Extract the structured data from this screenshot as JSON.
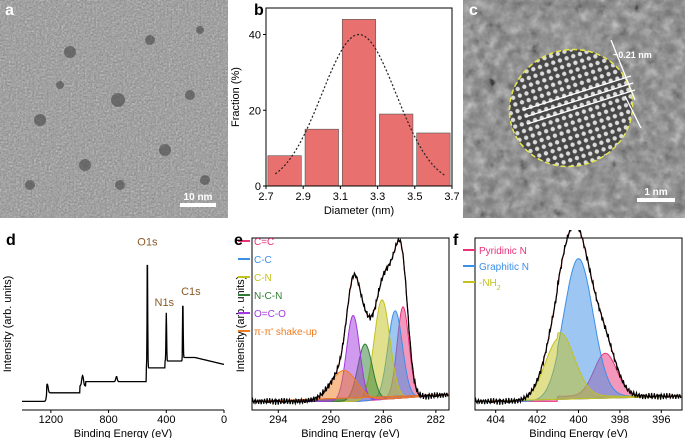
{
  "panel_labels": {
    "a": "a",
    "b": "b",
    "c": "c",
    "d": "d",
    "e": "e",
    "f": "f"
  },
  "panel_a": {
    "scalebar": "10 nm"
  },
  "panel_c": {
    "scalebar": "1 nm",
    "lattice_label": "~0.21 nm"
  },
  "chart_data": [
    {
      "id": "b",
      "type": "bar",
      "xlabel": "Diameter (nm)",
      "ylabel": "Fraction (%)",
      "xlim": [
        2.7,
        3.7
      ],
      "ylim": [
        0,
        47
      ],
      "xticks": [
        "2.7",
        "2.9",
        "3.1",
        "3.3",
        "3.5",
        "3.7"
      ],
      "yticks": [
        "0",
        "20",
        "40"
      ],
      "bar_width": 0.18,
      "bars": [
        {
          "x": 2.8,
          "y": 8
        },
        {
          "x": 3.0,
          "y": 15
        },
        {
          "x": 3.2,
          "y": 44
        },
        {
          "x": 3.4,
          "y": 19
        },
        {
          "x": 3.6,
          "y": 14
        }
      ],
      "fit": {
        "type": "gaussian",
        "mean": 3.2,
        "sigma": 0.2,
        "peak": 40
      },
      "bar_color": "#e8706e",
      "fit_color": "#222222"
    },
    {
      "id": "d",
      "type": "line",
      "xlabel": "Binding Energy (eV)",
      "ylabel": "Intensity (arb. units)",
      "xlim": [
        1400,
        0
      ],
      "xticks": [
        "1200",
        "800",
        "400",
        "0"
      ],
      "annotations": [
        {
          "text": "O1s",
          "x": 531
        },
        {
          "text": "N1s",
          "x": 400
        },
        {
          "text": "C1s",
          "x": 285
        }
      ],
      "annotation_color": "#8b5a2b"
    },
    {
      "id": "e",
      "type": "line",
      "xlabel": "Binding Energy (eV)",
      "ylabel": "Intensity (arb. units)",
      "xlim": [
        296,
        281
      ],
      "xticks": [
        "294",
        "290",
        "286",
        "282"
      ],
      "legend": [
        {
          "name": "C=C",
          "color": "#e8327a"
        },
        {
          "name": "C-C",
          "color": "#3c8fe6"
        },
        {
          "name": "C-N",
          "color": "#c3c21c"
        },
        {
          "name": "N-C-N",
          "color": "#2e7d32"
        },
        {
          "name": "O=C-O",
          "color": "#a238e0"
        },
        {
          "name": "π-π' shake-up",
          "color": "#f07c1f"
        }
      ],
      "components": [
        {
          "center": 284.5,
          "height": 0.53,
          "sigma": 0.45,
          "color": "#e8327a"
        },
        {
          "center": 285.1,
          "height": 0.51,
          "sigma": 0.55,
          "color": "#3c8fe6"
        },
        {
          "center": 286.1,
          "height": 0.58,
          "sigma": 0.6,
          "color": "#c3c21c"
        },
        {
          "center": 287.4,
          "height": 0.33,
          "sigma": 0.55,
          "color": "#2e7d32"
        },
        {
          "center": 288.3,
          "height": 0.5,
          "sigma": 0.5,
          "color": "#a238e0"
        },
        {
          "center": 289.0,
          "height": 0.18,
          "sigma": 1.0,
          "color": "#f07c1f"
        }
      ]
    },
    {
      "id": "f",
      "type": "line",
      "xlabel": "Binding Energy (eV)",
      "xlim": [
        405,
        395
      ],
      "xticks": [
        "404",
        "402",
        "400",
        "398",
        "396"
      ],
      "legend": [
        {
          "name": "Pyridinic N",
          "color": "#e8327a"
        },
        {
          "name": "Graphitic N",
          "color": "#3c8fe6"
        },
        {
          "name": "-NH",
          "sub": "2",
          "color": "#c3c21c"
        }
      ],
      "components": [
        {
          "center": 398.7,
          "height": 0.25,
          "sigma": 0.55,
          "color": "#e8327a"
        },
        {
          "center": 400.0,
          "height": 0.8,
          "sigma": 0.7,
          "color": "#3c8fe6"
        },
        {
          "center": 400.9,
          "height": 0.37,
          "sigma": 0.7,
          "color": "#c3c21c"
        }
      ]
    }
  ]
}
